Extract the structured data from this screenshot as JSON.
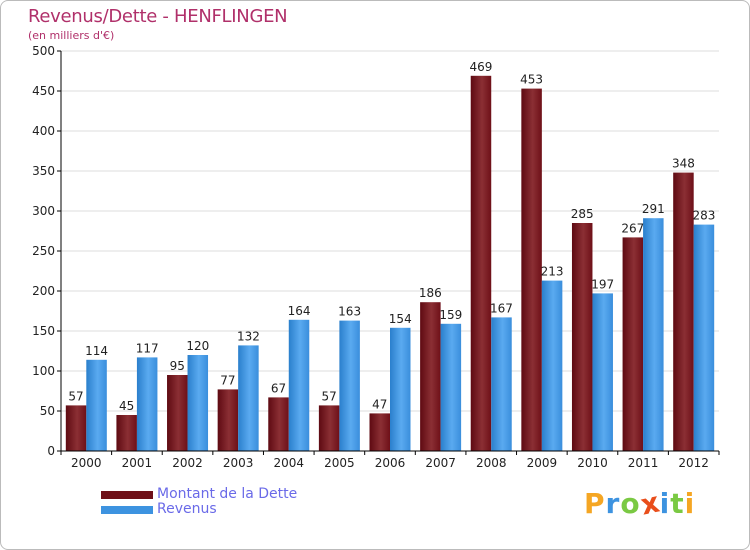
{
  "title": "Revenus/Dette - HENFLINGEN",
  "subtitle": "(en milliers d'€)",
  "colors": {
    "title": "#b0306a",
    "dette_dark": "#6e0f17",
    "dette_light": "#8b2f34",
    "revenus_dark": "#2a7fcc",
    "revenus_light": "#5aaaf0",
    "legend_text": "#6a6ae8",
    "grid": "#dddddd",
    "axis": "#000000"
  },
  "legend": [
    {
      "label": "Montant de la Dette",
      "color": "#6e0f17"
    },
    {
      "label": "Revenus",
      "color": "#3d93e0"
    }
  ],
  "logo": {
    "text": "Proxiti",
    "letters": [
      {
        "ch": "P",
        "color": "#f5a623"
      },
      {
        "ch": "r",
        "color": "#3d93e0"
      },
      {
        "ch": "o",
        "color": "#7ac943"
      },
      {
        "ch": "x",
        "color": "#e94e1b"
      },
      {
        "ch": "i",
        "color": "#3d93e0"
      },
      {
        "ch": "t",
        "color": "#7ac943"
      },
      {
        "ch": "i",
        "color": "#f5a623"
      }
    ]
  },
  "chart_data": {
    "type": "bar",
    "title": "Revenus/Dette - HENFLINGEN",
    "ylabel": "(en milliers d'€)",
    "xlabel": "",
    "categories": [
      "2000",
      "2001",
      "2002",
      "2003",
      "2004",
      "2005",
      "2006",
      "2007",
      "2008",
      "2009",
      "2010",
      "2011",
      "2012"
    ],
    "series": [
      {
        "name": "Montant de la Dette",
        "values": [
          57,
          45,
          95,
          77,
          67,
          57,
          47,
          186,
          469,
          453,
          285,
          267,
          348
        ]
      },
      {
        "name": "Revenus",
        "values": [
          114,
          117,
          120,
          132,
          164,
          163,
          154,
          159,
          167,
          213,
          197,
          291,
          283
        ]
      }
    ],
    "ylim": [
      0,
      500
    ],
    "yticks": [
      0,
      50,
      100,
      150,
      200,
      250,
      300,
      350,
      400,
      450,
      500
    ],
    "grid": true,
    "legend_position": "bottom-left"
  }
}
